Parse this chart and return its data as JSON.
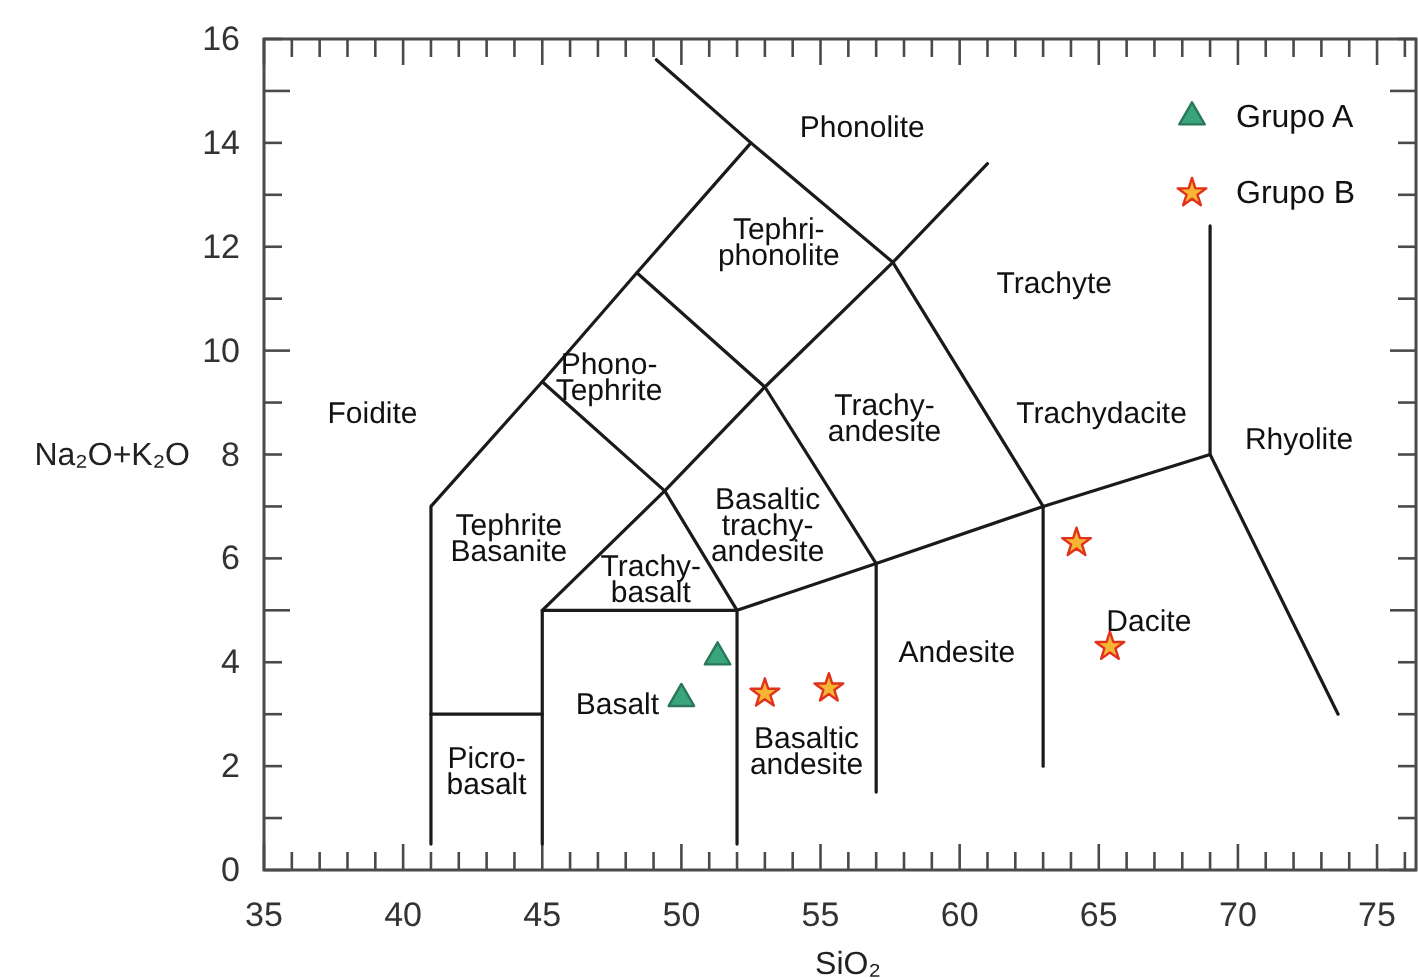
{
  "chart_data": {
    "type": "scatter",
    "xlabel": "SiO₂",
    "ylabel": "Na₂O+K₂O",
    "legend": "top right",
    "xlim": [
      35,
      76.4
    ],
    "ylim": [
      0,
      16
    ],
    "xticks": [
      35,
      {
        "value": 36,
        "label": null
      },
      {
        "value": 37,
        "label": null
      },
      {
        "value": 38,
        "label": null
      },
      {
        "value": 39,
        "label": null
      },
      40,
      {
        "value": 41,
        "label": null
      },
      {
        "value": 42,
        "label": null
      },
      {
        "value": 43,
        "label": null
      },
      {
        "value": 44,
        "label": null
      },
      45,
      {
        "value": 46,
        "label": null
      },
      {
        "value": 47,
        "label": null
      },
      {
        "value": 48,
        "label": null
      },
      {
        "value": 49,
        "label": null
      },
      50,
      {
        "value": 51,
        "label": null
      },
      {
        "value": 52,
        "label": null
      },
      {
        "value": 53,
        "label": null
      },
      {
        "value": 54,
        "label": null
      },
      55,
      {
        "value": 56,
        "label": null
      },
      {
        "value": 57,
        "label": null
      },
      {
        "value": 58,
        "label": null
      },
      {
        "value": 59,
        "label": null
      },
      60,
      {
        "value": 61,
        "label": null
      },
      {
        "value": 62,
        "label": null
      },
      {
        "value": 63,
        "label": null
      },
      {
        "value": 64,
        "label": null
      },
      65,
      {
        "value": 66,
        "label": null
      },
      {
        "value": 67,
        "label": null
      },
      {
        "value": 68,
        "label": null
      },
      {
        "value": 69,
        "label": null
      },
      70,
      {
        "value": 71,
        "label": null
      },
      {
        "value": 72,
        "label": null
      },
      {
        "value": 73,
        "label": null
      },
      {
        "value": 74,
        "label": null
      },
      75,
      {
        "value": 76,
        "label": null
      }
    ],
    "yticks": [
      0,
      {
        "value": 1,
        "label": null
      },
      2,
      {
        "value": 3,
        "label": null
      },
      4,
      {
        "value": 5,
        "label": null
      },
      6,
      {
        "value": 7,
        "label": null
      },
      8,
      {
        "value": 9,
        "label": null
      },
      10,
      {
        "value": 11,
        "label": null
      },
      12,
      {
        "value": 13,
        "label": null
      },
      14,
      {
        "value": 15,
        "label": null
      },
      16
    ],
    "series": [
      {
        "type": "line",
        "color": "#1a1a1a",
        "x": [
          41,
          41,
          45,
          48.4,
          52.5,
          49.1
        ],
        "values": [
          0.5,
          7,
          9.4,
          11.5,
          14,
          15.6
        ]
      },
      {
        "type": "line",
        "color": "#1a1a1a",
        "x": [
          52.5,
          57.6,
          63,
          69,
          73.6
        ],
        "values": [
          14,
          11.7,
          7,
          8,
          3
        ]
      },
      {
        "type": "line",
        "color": "#1a1a1a",
        "x": [
          41,
          45
        ],
        "values": [
          3,
          3
        ]
      },
      {
        "type": "line",
        "color": "#1a1a1a",
        "x": [
          45,
          45,
          52,
          57,
          63
        ],
        "values": [
          0.5,
          5,
          5,
          5.9,
          7
        ]
      },
      {
        "type": "line",
        "color": "#1a1a1a",
        "x": [
          45,
          49.4,
          53,
          57.6,
          61
        ],
        "values": [
          5,
          7.3,
          9.3,
          11.7,
          13.6
        ]
      },
      {
        "type": "line",
        "color": "#1a1a1a",
        "x": [
          45,
          49.4,
          52,
          52
        ],
        "values": [
          9.4,
          7.3,
          5,
          0.5
        ]
      },
      {
        "type": "line",
        "color": "#1a1a1a",
        "x": [
          48.4,
          53,
          57,
          57
        ],
        "values": [
          11.5,
          9.3,
          5.9,
          1.5
        ]
      },
      {
        "type": "line",
        "color": "#1a1a1a",
        "x": [
          63,
          63
        ],
        "values": [
          7,
          2
        ]
      },
      {
        "type": "line",
        "color": "#1a1a1a",
        "x": [
          69,
          69
        ],
        "values": [
          8,
          12.4
        ]
      },
      {
        "type": "scatter",
        "name": "Grupo A",
        "color": "#3aa57d",
        "marker": "triangle",
        "x": [
          50.0,
          51.3
        ],
        "values": [
          3.3,
          4.1
        ]
      },
      {
        "type": "scatter",
        "name": "Grupo B",
        "color": "#f7b534",
        "marker": "star",
        "x": [
          53.0,
          55.3,
          64.2,
          65.4
        ],
        "values": [
          3.4,
          3.5,
          6.3,
          4.3
        ]
      }
    ],
    "annotations": [
      "Foidite",
      "Phonolite",
      "Tephri-\nphonolite",
      "Phono-\nTephrite",
      "Trachyte",
      "Trachy-\nandesite",
      "Trachydacite",
      "Rhyolite",
      "Tephrite\nBasanite",
      "Trachy-\nbasalt",
      "Basaltic\ntrachy-\nandesite",
      "Basalt",
      "Picro-\nbasalt",
      "Basaltic\nandesite",
      "Andesite",
      "Dacite"
    ]
  }
}
